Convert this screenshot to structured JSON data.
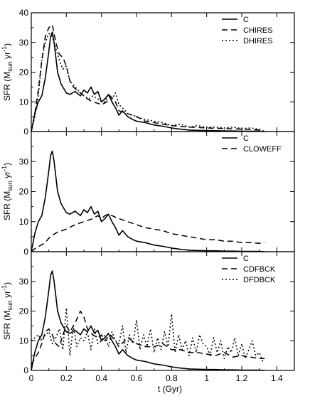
{
  "chart_data": [
    {
      "type": "line",
      "panel": "top",
      "xlim": [
        0,
        1.5
      ],
      "ylim": [
        0,
        40
      ],
      "ylabel_main": "SFR (M",
      "ylabel_sub": "sun",
      "ylabel_mid": " yr",
      "ylabel_sup": "-1",
      "ylabel_end": ")",
      "yticks": [
        0,
        10,
        20,
        30,
        40
      ],
      "ytick_labels": [
        "0",
        "10",
        "20",
        "30",
        "40"
      ],
      "legend_position": "top-right",
      "series": [
        {
          "name": "C",
          "style": "solid",
          "x": [
            0,
            0.02,
            0.04,
            0.06,
            0.08,
            0.1,
            0.11,
            0.12,
            0.13,
            0.15,
            0.17,
            0.2,
            0.22,
            0.25,
            0.28,
            0.3,
            0.32,
            0.34,
            0.36,
            0.38,
            0.4,
            0.42,
            0.44,
            0.46,
            0.48,
            0.5,
            0.52,
            0.55,
            0.58,
            0.6,
            0.65,
            0.7,
            0.75,
            0.8,
            0.85,
            0.9,
            0.95,
            1.0,
            1.05,
            1.1,
            1.15,
            1.2,
            1.25,
            1.3,
            1.33
          ],
          "y": [
            0,
            6,
            10,
            12,
            18,
            27,
            32,
            33.5,
            30,
            20,
            16,
            13,
            12.5,
            13.5,
            12,
            14,
            13,
            15,
            12.5,
            13.5,
            10,
            11,
            12.5,
            10,
            8,
            5.5,
            7,
            5,
            4,
            3.5,
            3,
            2.2,
            1.8,
            1.2,
            0.8,
            0.5,
            0.4,
            0.3,
            0.3,
            0.2,
            0.2,
            0.1,
            0.1,
            0.1,
            0.0
          ]
        },
        {
          "name": "CHIRES",
          "style": "dashed",
          "x": [
            0,
            0.02,
            0.04,
            0.06,
            0.08,
            0.1,
            0.12,
            0.14,
            0.16,
            0.18,
            0.2,
            0.22,
            0.24,
            0.26,
            0.28,
            0.3,
            0.32,
            0.35,
            0.38,
            0.4,
            0.43,
            0.45,
            0.48,
            0.5,
            0.55,
            0.6,
            0.65,
            0.7,
            0.75,
            0.8,
            0.9,
            1.0,
            1.1,
            1.2,
            1.3,
            1.33
          ],
          "y": [
            0,
            6,
            14,
            24,
            32,
            35,
            36,
            30,
            26,
            25,
            22,
            17,
            15,
            14,
            13,
            12,
            11,
            10,
            9.5,
            9,
            10,
            12,
            10,
            7,
            6,
            5,
            3.5,
            3,
            2.5,
            2,
            1.5,
            1.2,
            1.0,
            0.8,
            0.5,
            0.0
          ]
        },
        {
          "name": "DHIRES",
          "style": "dotted",
          "x": [
            0,
            0.02,
            0.04,
            0.06,
            0.08,
            0.1,
            0.12,
            0.14,
            0.16,
            0.18,
            0.2,
            0.22,
            0.25,
            0.28,
            0.3,
            0.33,
            0.35,
            0.38,
            0.4,
            0.42,
            0.44,
            0.46,
            0.48,
            0.5,
            0.52,
            0.55,
            0.58,
            0.6,
            0.65,
            0.7,
            0.75,
            0.8,
            0.85,
            0.9,
            0.95,
            1.0,
            1.05,
            1.1,
            1.15,
            1.2,
            1.25,
            1.3,
            1.33
          ],
          "y": [
            0,
            5,
            12,
            24,
            30,
            33,
            32,
            28,
            24,
            21,
            22,
            17,
            15,
            13,
            12,
            11,
            12,
            11,
            10,
            10,
            12.5,
            11,
            13,
            9,
            8,
            6,
            5.5,
            5,
            4,
            3.5,
            3,
            2,
            2.5,
            1.5,
            2,
            1.5,
            1.5,
            1.2,
            1.5,
            1,
            1.2,
            0.8,
            0.0
          ]
        }
      ]
    },
    {
      "type": "line",
      "panel": "middle",
      "xlim": [
        0,
        1.5
      ],
      "ylim": [
        0,
        40
      ],
      "ylabel_main": "SFR (M",
      "ylabel_sub": "sun",
      "ylabel_mid": " yr",
      "ylabel_sup": "-1",
      "ylabel_end": ")",
      "yticks": [
        0,
        10,
        20,
        30
      ],
      "ytick_labels": [
        "0",
        "10",
        "20",
        "30"
      ],
      "legend_position": "top-right",
      "series": [
        {
          "name": "C",
          "style": "solid",
          "x": [
            0,
            0.02,
            0.04,
            0.06,
            0.08,
            0.1,
            0.11,
            0.12,
            0.13,
            0.15,
            0.17,
            0.2,
            0.22,
            0.25,
            0.28,
            0.3,
            0.32,
            0.34,
            0.36,
            0.38,
            0.4,
            0.42,
            0.44,
            0.46,
            0.48,
            0.5,
            0.52,
            0.55,
            0.58,
            0.6,
            0.65,
            0.7,
            0.75,
            0.8,
            0.85,
            0.9,
            0.95,
            1.0,
            1.05,
            1.1,
            1.15,
            1.2,
            1.25,
            1.3,
            1.33
          ],
          "y": [
            0,
            6,
            10,
            12,
            18,
            27,
            32,
            33.5,
            30,
            20,
            16,
            13,
            12.5,
            13.5,
            12,
            14,
            13,
            15,
            12.5,
            13.5,
            10,
            11,
            12.5,
            10,
            8,
            5.5,
            7,
            5,
            4,
            3.5,
            3,
            2.2,
            1.8,
            1.2,
            0.8,
            0.5,
            0.4,
            0.3,
            0.3,
            0.2,
            0.2,
            0.1,
            0.1,
            0.1,
            0.0
          ]
        },
        {
          "name": "CLOWEFF",
          "style": "dashed",
          "x": [
            0,
            0.02,
            0.05,
            0.08,
            0.1,
            0.12,
            0.15,
            0.2,
            0.25,
            0.3,
            0.35,
            0.38,
            0.4,
            0.42,
            0.44,
            0.46,
            0.48,
            0.5,
            0.55,
            0.6,
            0.65,
            0.7,
            0.75,
            0.8,
            0.85,
            0.9,
            0.95,
            1.0,
            1.05,
            1.1,
            1.15,
            1.2,
            1.25,
            1.3,
            1.33
          ],
          "y": [
            0,
            1,
            2,
            3,
            4.5,
            5.5,
            6.5,
            7.5,
            9,
            10,
            11,
            12,
            11,
            12,
            12.5,
            12,
            11.5,
            11,
            10,
            9,
            8,
            7.5,
            7,
            6,
            5.5,
            5,
            4.5,
            4,
            4,
            3.5,
            3.5,
            3,
            3,
            2.8,
            3
          ]
        }
      ]
    },
    {
      "type": "line",
      "panel": "bottom",
      "xlim": [
        0,
        1.5
      ],
      "ylim": [
        0,
        40
      ],
      "ylabel_main": "SFR (M",
      "ylabel_sub": "sun",
      "ylabel_mid": " yr",
      "ylabel_sup": "-1",
      "ylabel_end": ")",
      "yticks": [
        0,
        10,
        20,
        30
      ],
      "ytick_labels": [
        "0",
        "10",
        "20",
        "30"
      ],
      "xticks": [
        0,
        0.2,
        0.4,
        0.6,
        0.8,
        1.0,
        1.2,
        1.4
      ],
      "xtick_labels": [
        "0",
        "0.2",
        "0.4",
        "0.6",
        "0.8",
        "1",
        "1.2",
        "1.4"
      ],
      "xlabel": "t (Gyr)",
      "legend_position": "top-right",
      "series": [
        {
          "name": "C",
          "style": "solid",
          "x": [
            0,
            0.02,
            0.04,
            0.06,
            0.08,
            0.1,
            0.11,
            0.12,
            0.13,
            0.15,
            0.17,
            0.2,
            0.22,
            0.25,
            0.28,
            0.3,
            0.32,
            0.34,
            0.36,
            0.38,
            0.4,
            0.42,
            0.44,
            0.46,
            0.48,
            0.5,
            0.52,
            0.55,
            0.58,
            0.6,
            0.65,
            0.7,
            0.75,
            0.8,
            0.85,
            0.9,
            0.95,
            1.0,
            1.05,
            1.1,
            1.15,
            1.2,
            1.25,
            1.3,
            1.33
          ],
          "y": [
            0,
            6,
            10,
            12,
            18,
            27,
            32,
            33.5,
            30,
            20,
            16,
            13,
            12.5,
            13.5,
            12,
            14,
            13,
            15,
            12.5,
            13.5,
            10,
            11,
            12.5,
            10,
            8,
            5.5,
            7,
            5,
            4,
            3.5,
            3,
            2.2,
            1.8,
            1.2,
            0.8,
            0.5,
            0.4,
            0.3,
            0.3,
            0.2,
            0.2,
            0.1,
            0.1,
            0.1,
            0.0
          ]
        },
        {
          "name": "CDFBCK",
          "style": "dashed",
          "x": [
            0,
            0.02,
            0.04,
            0.06,
            0.08,
            0.1,
            0.12,
            0.14,
            0.16,
            0.18,
            0.2,
            0.22,
            0.25,
            0.28,
            0.3,
            0.32,
            0.35,
            0.38,
            0.4,
            0.42,
            0.45,
            0.48,
            0.5,
            0.55,
            0.6,
            0.65,
            0.7,
            0.75,
            0.8,
            0.85,
            0.9,
            0.95,
            1.0,
            1.05,
            1.1,
            1.15,
            1.2,
            1.25,
            1.3,
            1.33
          ],
          "y": [
            2,
            4,
            6,
            9,
            13,
            14,
            12,
            9,
            8,
            12,
            15,
            13,
            16,
            20,
            18,
            14,
            12,
            11,
            12,
            10,
            12,
            10,
            8,
            11,
            9,
            8,
            8,
            9,
            7,
            7,
            6,
            6,
            5.5,
            5,
            6,
            4.5,
            5,
            4.5,
            4,
            4
          ]
        },
        {
          "name": "DFDBCK",
          "style": "dotted",
          "x": [
            0,
            0.02,
            0.04,
            0.06,
            0.08,
            0.1,
            0.12,
            0.14,
            0.16,
            0.18,
            0.2,
            0.22,
            0.24,
            0.26,
            0.28,
            0.3,
            0.32,
            0.34,
            0.36,
            0.38,
            0.4,
            0.42,
            0.44,
            0.46,
            0.48,
            0.5,
            0.52,
            0.54,
            0.56,
            0.58,
            0.6,
            0.62,
            0.64,
            0.66,
            0.68,
            0.7,
            0.72,
            0.74,
            0.76,
            0.78,
            0.8,
            0.82,
            0.84,
            0.86,
            0.88,
            0.9,
            0.92,
            0.94,
            0.96,
            0.98,
            1.0,
            1.02,
            1.04,
            1.06,
            1.08,
            1.1,
            1.12,
            1.14,
            1.16,
            1.18,
            1.2,
            1.22,
            1.24,
            1.26,
            1.28,
            1.3,
            1.32
          ],
          "y": [
            10,
            11,
            12,
            10,
            12,
            13,
            9,
            11,
            14,
            7,
            21,
            5,
            15,
            8,
            11,
            10,
            13,
            7,
            14,
            9,
            10,
            12,
            8,
            13,
            10,
            9,
            15,
            6,
            12,
            9,
            17,
            7,
            12,
            8,
            14,
            6,
            11,
            7,
            13,
            8,
            19,
            6,
            12,
            7,
            10,
            5,
            11,
            6,
            12,
            9,
            8,
            5,
            11,
            6,
            10,
            4,
            8,
            6,
            11,
            5,
            9,
            4,
            7,
            10,
            5,
            6,
            3
          ]
        }
      ]
    }
  ]
}
